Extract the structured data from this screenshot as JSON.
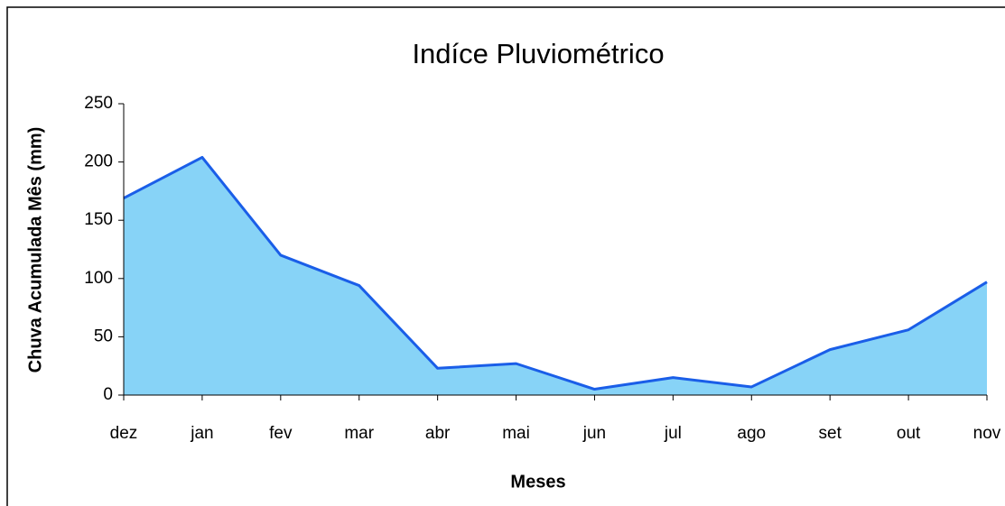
{
  "chart_data": {
    "type": "area",
    "title": "Indíce Pluviométrico",
    "x_label": "Meses",
    "y_label": "Chuva Acumulada Mês (mm)",
    "categories": [
      "dez",
      "jan",
      "fev",
      "mar",
      "abr",
      "mai",
      "jun",
      "jul",
      "ago",
      "set",
      "out",
      "nov"
    ],
    "values": [
      169,
      204,
      120,
      94,
      23,
      27,
      5,
      15,
      7,
      39,
      56,
      97
    ],
    "color": "#1a5ee8",
    "fill": "#87d3f7",
    "ylim": [
      0,
      250
    ],
    "yticks": [
      0,
      50,
      100,
      150,
      200,
      250
    ],
    "grid": false
  }
}
